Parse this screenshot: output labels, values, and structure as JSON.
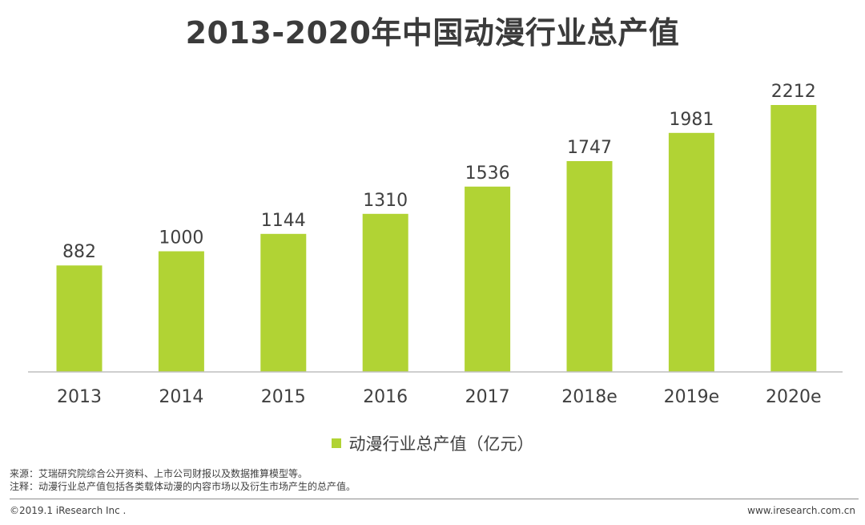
{
  "title": "2013-2020年中国动漫行业总产值",
  "legend": {
    "label": "动漫行业总产值（亿元）",
    "color": "#b1d334"
  },
  "notes": {
    "source": "来源：艾瑞研究院综合公开资料、上市公司财报以及数据推算模型等。",
    "remark": "注释：动漫行业总产值包括各类载体动漫的内容市场以及衍生市场产生的总产值。"
  },
  "footer": {
    "copyright": "©2019.1 iResearch Inc .",
    "website": "www.iresearch.com.cn"
  },
  "chart_data": {
    "type": "bar",
    "title": "2013-2020年中国动漫行业总产值",
    "categories": [
      "2013",
      "2014",
      "2015",
      "2016",
      "2017",
      "2018e",
      "2019e",
      "2020e"
    ],
    "series": [
      {
        "name": "动漫行业总产值（亿元）",
        "values": [
          882,
          1000,
          1144,
          1310,
          1536,
          1747,
          1981,
          2212
        ],
        "color": "#b1d334"
      }
    ],
    "xlabel": "",
    "ylabel": "",
    "ylim": [
      0,
      2212
    ],
    "grid": false,
    "legend_position": "bottom"
  }
}
